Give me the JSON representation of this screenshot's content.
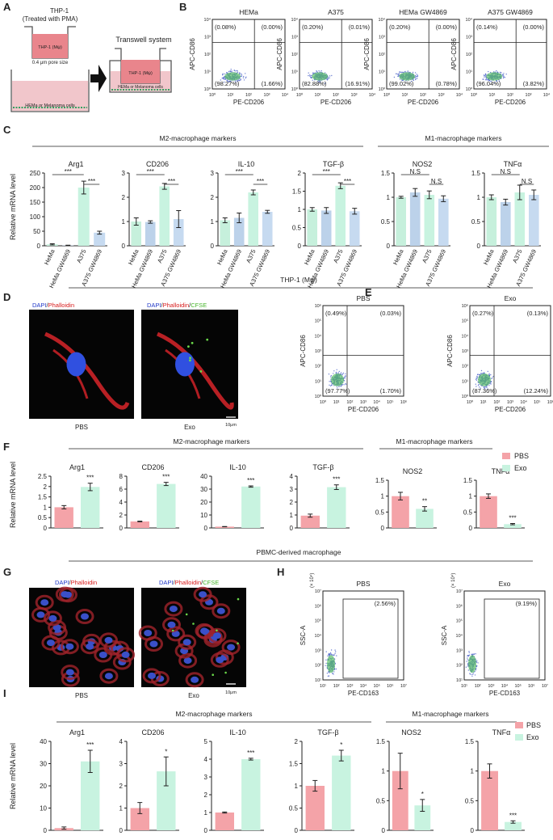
{
  "colors": {
    "pbs": "#f4a3a8",
    "exo": "#c8f3e0",
    "hema": "#c6f0dc",
    "hema_gw": "#bcd2ea",
    "a375": "#c8f3e0",
    "a375_gw": "#c6daf0",
    "axis": "#222222",
    "dots": "#4a62c8"
  },
  "panelA": {
    "letter": "A",
    "title_line1": "THP-1",
    "title_line2": "(Treated with PMA)",
    "insert_label": "THP-1 (Mψ)",
    "pore": "0.4 μm pore size",
    "bottom_label": "HEMa or Melanoma cells",
    "transwell_title": "Transwell system",
    "tw_insert": "THP-1 (Mψ)",
    "tw_bottom": "HEMa or Melanoma cells"
  },
  "panelB": {
    "letter": "B",
    "ylabel": "APC-CD86",
    "xlabel": "PE-CD206",
    "ticks": [
      "10⁰",
      "10¹",
      "10²",
      "10³",
      "10⁴"
    ],
    "plots": [
      {
        "title": "HEMa",
        "q": [
          "(0.08%)",
          "(0.00%)",
          "(98.27%)",
          "(1.66%)"
        ]
      },
      {
        "title": "A375",
        "q": [
          "(0.20%)",
          "(0.01%)",
          "(82.88%)",
          "(16.91%)"
        ]
      },
      {
        "title": "HEMa GW4869",
        "q": [
          "(0.20%)",
          "(0.00%)",
          "(99.02%)",
          "(0.78%)"
        ]
      },
      {
        "title": "A375 GW4869",
        "q": [
          "(0.14%)",
          "(0.00%)",
          "(96.04%)",
          "(3.82%)"
        ]
      }
    ]
  },
  "panelC": {
    "letter": "C",
    "group_m2": "M2-macrophage markers",
    "group_m1": "M1-macrophage markers",
    "ylabel": "Relative mRNA level",
    "categories": [
      "HeMa",
      "HeMa GW4869",
      "A375",
      "A375 GW4869"
    ],
    "sig_labels": [
      "***",
      "***",
      "N.S",
      "N.S"
    ]
  },
  "panelD": {
    "letter": "D",
    "header": "THP-1 (Mψ)",
    "left_stain": [
      "DAPI",
      "/",
      "Phalloidin"
    ],
    "right_stain": [
      "DAPI",
      "/",
      "Phalloidin",
      "/",
      "CFSE"
    ],
    "left_caption": "PBS",
    "right_caption": "Exo",
    "scale": "10μm"
  },
  "panelE": {
    "letter": "E",
    "ylabel": "APC-CD86",
    "xlabel": "PE-CD206",
    "ticks": [
      "10⁰",
      "10¹",
      "10²",
      "10³",
      "10⁴",
      "10⁵",
      "10⁶"
    ],
    "plots": [
      {
        "title": "PBS",
        "q": [
          "(0.49%)",
          "(0.03%)",
          "(97.77%)",
          "(1.70%)"
        ]
      },
      {
        "title": "Exo",
        "q": [
          "(0.27%)",
          "(0.13%)",
          "(87.36%)",
          "(12.24%)"
        ]
      }
    ]
  },
  "panelF": {
    "letter": "F",
    "group_m2": "M2-macrophage markers",
    "group_m1": "M1-macrophage markers",
    "ylabel": "Relative mRNA level",
    "legend": [
      "PBS",
      "Exo"
    ]
  },
  "panelG": {
    "letter": "G",
    "header": "PBMC-derived  macrophage",
    "left_stain": [
      "DAPI",
      "/",
      "Phalloidin"
    ],
    "right_stain": [
      "DAPI",
      "/",
      "Phalloidin",
      "/",
      "CFSE"
    ],
    "left_caption": "PBS",
    "right_caption": "Exo",
    "scale": "10μm"
  },
  "panelH": {
    "letter": "H",
    "ylabel": "SSC-A",
    "xlabel": "PE-CD163",
    "yexp": "(× 10⁴)",
    "ticks": [
      "10¹",
      "10²",
      "10³",
      "10⁴",
      "10⁵",
      "10⁶",
      "10⁷"
    ],
    "plots": [
      {
        "title": "PBS",
        "gate": "(2.56%)"
      },
      {
        "title": "Exo",
        "gate": "(9.19%)"
      }
    ]
  },
  "panelI": {
    "letter": "I",
    "group_m2": "M2-macrophage markers",
    "group_m1": "M1-macrophage markers",
    "ylabel": "Relative mRNA level",
    "legend": [
      "PBS",
      "Exo"
    ]
  },
  "chart_data": [
    {
      "type": "bar",
      "panel": "C",
      "title": "Arg1",
      "categories": [
        "HeMa",
        "HeMa GW4869",
        "A375",
        "A375 GW4869"
      ],
      "values": [
        5,
        1,
        200,
        45
      ],
      "errors": [
        2,
        1,
        22,
        5
      ],
      "ylim": [
        0,
        250
      ],
      "yticks": [
        0,
        50,
        100,
        150,
        200,
        250
      ],
      "sig": [
        "***",
        "***"
      ]
    },
    {
      "type": "bar",
      "panel": "C",
      "title": "CD206",
      "categories": [
        "HeMa",
        "HeMa GW4869",
        "A375",
        "A375 GW4869"
      ],
      "values": [
        1.0,
        0.98,
        2.45,
        1.1
      ],
      "errors": [
        0.15,
        0.05,
        0.12,
        0.35
      ],
      "ylim": [
        0,
        3
      ],
      "yticks": [
        0,
        1,
        2,
        3
      ],
      "sig": [
        "***",
        "***"
      ]
    },
    {
      "type": "bar",
      "panel": "C",
      "title": "IL-10",
      "categories": [
        "HeMa",
        "HeMa GW4869",
        "A375",
        "A375 GW4869"
      ],
      "values": [
        1.05,
        1.15,
        2.2,
        1.4
      ],
      "errors": [
        0.1,
        0.2,
        0.1,
        0.06
      ],
      "ylim": [
        0,
        3
      ],
      "yticks": [
        0,
        1,
        2,
        3
      ],
      "sig": [
        "***",
        "***"
      ]
    },
    {
      "type": "bar",
      "panel": "C",
      "title": "TGF-β",
      "categories": [
        "HeMa",
        "HeMa GW4869",
        "A375",
        "A375 GW4869"
      ],
      "values": [
        1.0,
        0.97,
        1.65,
        0.95
      ],
      "errors": [
        0.05,
        0.08,
        0.08,
        0.08
      ],
      "ylim": [
        0,
        2.0
      ],
      "yticks": [
        0,
        0.5,
        1.0,
        1.5,
        2.0
      ],
      "sig": [
        "***",
        "***"
      ]
    },
    {
      "type": "bar",
      "panel": "C",
      "title": "NOS2",
      "categories": [
        "HeMa",
        "HeMa GW4869",
        "A375",
        "A375 GW4869"
      ],
      "values": [
        1.0,
        1.1,
        1.05,
        0.97
      ],
      "errors": [
        0.02,
        0.08,
        0.08,
        0.06
      ],
      "ylim": [
        0,
        1.5
      ],
      "yticks": [
        0,
        0.5,
        1.0,
        1.5
      ],
      "sig": [
        "N.S",
        "N.S"
      ]
    },
    {
      "type": "bar",
      "panel": "C",
      "title": "TNFα",
      "categories": [
        "HeMa",
        "HeMa GW4869",
        "A375",
        "A375 GW4869"
      ],
      "values": [
        1.0,
        0.9,
        1.1,
        1.05
      ],
      "errors": [
        0.05,
        0.06,
        0.15,
        0.1
      ],
      "ylim": [
        0,
        1.5
      ],
      "yticks": [
        0,
        0.5,
        1.0,
        1.5
      ],
      "sig": [
        "N.S",
        "N.S"
      ]
    },
    {
      "type": "bar",
      "panel": "F",
      "title": "Arg1",
      "categories": [
        "PBS",
        "Exo"
      ],
      "values": [
        1.0,
        1.98
      ],
      "errors": [
        0.08,
        0.18
      ],
      "ylim": [
        0,
        2.5
      ],
      "yticks": [
        0,
        0.5,
        1.0,
        1.5,
        2.0,
        2.5
      ],
      "sig": "***"
    },
    {
      "type": "bar",
      "panel": "F",
      "title": "CD206",
      "categories": [
        "PBS",
        "Exo"
      ],
      "values": [
        1.0,
        6.8
      ],
      "errors": [
        0.05,
        0.25
      ],
      "ylim": [
        0,
        8
      ],
      "yticks": [
        0,
        2,
        4,
        6,
        8
      ],
      "sig": "***"
    },
    {
      "type": "bar",
      "panel": "F",
      "title": "IL-10",
      "categories": [
        "PBS",
        "Exo"
      ],
      "values": [
        1.0,
        32
      ],
      "errors": [
        0.1,
        0.5
      ],
      "ylim": [
        0,
        40
      ],
      "yticks": [
        0,
        10,
        20,
        30,
        40
      ],
      "sig": "***"
    },
    {
      "type": "bar",
      "panel": "F",
      "title": "TGF-β",
      "categories": [
        "PBS",
        "Exo"
      ],
      "values": [
        0.95,
        3.15
      ],
      "errors": [
        0.12,
        0.18
      ],
      "ylim": [
        0,
        4
      ],
      "yticks": [
        0,
        1,
        2,
        3,
        4
      ],
      "sig": "***"
    },
    {
      "type": "bar",
      "panel": "F",
      "title": "NOS2",
      "categories": [
        "PBS",
        "Exo"
      ],
      "values": [
        1.0,
        0.6
      ],
      "errors": [
        0.12,
        0.07
      ],
      "ylim": [
        0,
        1.5
      ],
      "yticks": [
        0,
        0.5,
        1.0,
        1.5
      ],
      "sig": "**"
    },
    {
      "type": "bar",
      "panel": "F",
      "title": "TNFα",
      "categories": [
        "PBS",
        "Exo"
      ],
      "values": [
        1.0,
        0.12
      ],
      "errors": [
        0.07,
        0.02
      ],
      "ylim": [
        0,
        1.5
      ],
      "yticks": [
        0,
        0.5,
        1.0,
        1.5
      ],
      "sig": "***"
    },
    {
      "type": "bar",
      "panel": "I",
      "title": "Arg1",
      "categories": [
        "PBS",
        "Exo"
      ],
      "values": [
        1,
        31
      ],
      "errors": [
        0.5,
        5
      ],
      "ylim": [
        0,
        40
      ],
      "yticks": [
        0,
        10,
        20,
        30,
        40
      ],
      "sig": "***"
    },
    {
      "type": "bar",
      "panel": "I",
      "title": "CD206",
      "categories": [
        "PBS",
        "Exo"
      ],
      "values": [
        1.0,
        2.65
      ],
      "errors": [
        0.25,
        0.65
      ],
      "ylim": [
        0,
        4
      ],
      "yticks": [
        0,
        1,
        2,
        3,
        4
      ],
      "sig": "*"
    },
    {
      "type": "bar",
      "panel": "I",
      "title": "IL-10",
      "categories": [
        "PBS",
        "Exo"
      ],
      "values": [
        1.0,
        4.0
      ],
      "errors": [
        0.03,
        0.05
      ],
      "ylim": [
        0,
        5
      ],
      "yticks": [
        0,
        1,
        2,
        3,
        4,
        5
      ],
      "sig": "***"
    },
    {
      "type": "bar",
      "panel": "I",
      "title": "TGF-β",
      "categories": [
        "PBS",
        "Exo"
      ],
      "values": [
        1.0,
        1.68
      ],
      "errors": [
        0.12,
        0.12
      ],
      "ylim": [
        0,
        2.0
      ],
      "yticks": [
        0,
        0.5,
        1.0,
        1.5,
        2.0
      ],
      "sig": "*"
    },
    {
      "type": "bar",
      "panel": "I",
      "title": "NOS2",
      "categories": [
        "PBS",
        "Exo"
      ],
      "values": [
        1.0,
        0.42
      ],
      "errors": [
        0.3,
        0.1
      ],
      "ylim": [
        0,
        1.5
      ],
      "yticks": [
        0,
        0.5,
        1.0,
        1.5
      ],
      "sig": "*"
    },
    {
      "type": "bar",
      "panel": "I",
      "title": "TNFα",
      "categories": [
        "PBS",
        "Exo"
      ],
      "values": [
        1.0,
        0.14
      ],
      "errors": [
        0.12,
        0.02
      ],
      "ylim": [
        0,
        1.5
      ],
      "yticks": [
        0,
        0.5,
        1.0,
        1.5
      ],
      "sig": "***"
    }
  ]
}
